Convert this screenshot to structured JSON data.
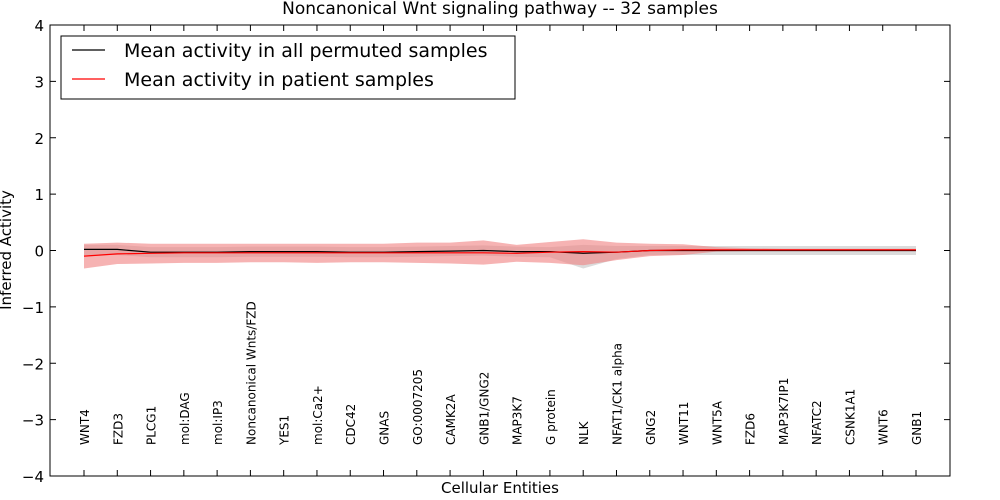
{
  "chart_data": {
    "type": "line",
    "title": "Noncanonical Wnt signaling pathway -- 32 samples",
    "xlabel": "Cellular Entities",
    "ylabel": "Inferred Activity",
    "ylim": [
      -4,
      4
    ],
    "yticks": [
      "−4",
      "−3",
      "−2",
      "−1",
      "0",
      "1",
      "2",
      "3",
      "4"
    ],
    "ytick_values": [
      -4,
      -3,
      -2,
      -1,
      0,
      1,
      2,
      3,
      4
    ],
    "legend_position": "top-left",
    "categories": [
      "WNT4",
      "FZD3",
      "PLCG1",
      "mol:DAG",
      "mol:IP3",
      "Noncanonical Wnts/FZD",
      "YES1",
      "mol:Ca2+",
      "CDC42",
      "GNAS",
      "GO:0007205",
      "CAMK2A",
      "GNB1/GNG2",
      "MAP3K7",
      "G protein",
      "NLK",
      "NFAT1/CK1 alpha",
      "GNG2",
      "WNT11",
      "WNT5A",
      "FZD6",
      "MAP3K7IP1",
      "NFATC2",
      "CSNK1A1",
      "WNT6",
      "GNB1"
    ],
    "series": [
      {
        "name": "Mean activity in all permuted samples",
        "color": "#000000",
        "band_color": "#b0b0b0",
        "values": [
          0.02,
          0.02,
          -0.03,
          -0.03,
          -0.03,
          -0.02,
          -0.02,
          -0.02,
          -0.03,
          -0.03,
          -0.02,
          -0.01,
          0.0,
          -0.02,
          -0.02,
          -0.05,
          -0.03,
          0.0,
          0.0,
          0.0,
          0.0,
          0.0,
          0.0,
          0.0,
          0.0,
          0.0
        ],
        "lower": [
          -0.08,
          -0.08,
          -0.12,
          -0.12,
          -0.12,
          -0.11,
          -0.11,
          -0.11,
          -0.12,
          -0.12,
          -0.11,
          -0.1,
          -0.09,
          -0.11,
          -0.12,
          -0.32,
          -0.15,
          -0.08,
          -0.08,
          -0.08,
          -0.08,
          -0.08,
          -0.08,
          -0.08,
          -0.08,
          -0.08
        ],
        "upper": [
          0.1,
          0.1,
          0.06,
          0.06,
          0.06,
          0.07,
          0.07,
          0.07,
          0.06,
          0.06,
          0.07,
          0.08,
          0.09,
          0.07,
          0.06,
          0.1,
          0.08,
          0.08,
          0.08,
          0.08,
          0.08,
          0.08,
          0.08,
          0.08,
          0.08,
          0.08
        ]
      },
      {
        "name": "Mean activity in patient samples",
        "color": "#ff0000",
        "band_color": "#f08080",
        "values": [
          -0.1,
          -0.06,
          -0.05,
          -0.04,
          -0.04,
          -0.04,
          -0.04,
          -0.04,
          -0.04,
          -0.04,
          -0.04,
          -0.04,
          -0.04,
          -0.05,
          -0.03,
          -0.02,
          -0.03,
          0.0,
          0.01,
          0.01,
          0.01,
          0.01,
          0.01,
          0.01,
          0.01,
          0.01
        ],
        "lower": [
          -0.32,
          -0.24,
          -0.23,
          -0.22,
          -0.22,
          -0.21,
          -0.21,
          -0.22,
          -0.21,
          -0.21,
          -0.22,
          -0.23,
          -0.25,
          -0.2,
          -0.22,
          -0.26,
          -0.17,
          -0.1,
          -0.08,
          -0.02,
          -0.01,
          -0.01,
          -0.01,
          -0.01,
          -0.01,
          -0.01
        ],
        "upper": [
          0.12,
          0.14,
          0.12,
          0.12,
          0.12,
          0.12,
          0.12,
          0.12,
          0.12,
          0.12,
          0.14,
          0.14,
          0.18,
          0.1,
          0.15,
          0.2,
          0.14,
          0.12,
          0.11,
          0.06,
          0.04,
          0.03,
          0.03,
          0.03,
          0.03,
          0.03
        ]
      }
    ]
  }
}
